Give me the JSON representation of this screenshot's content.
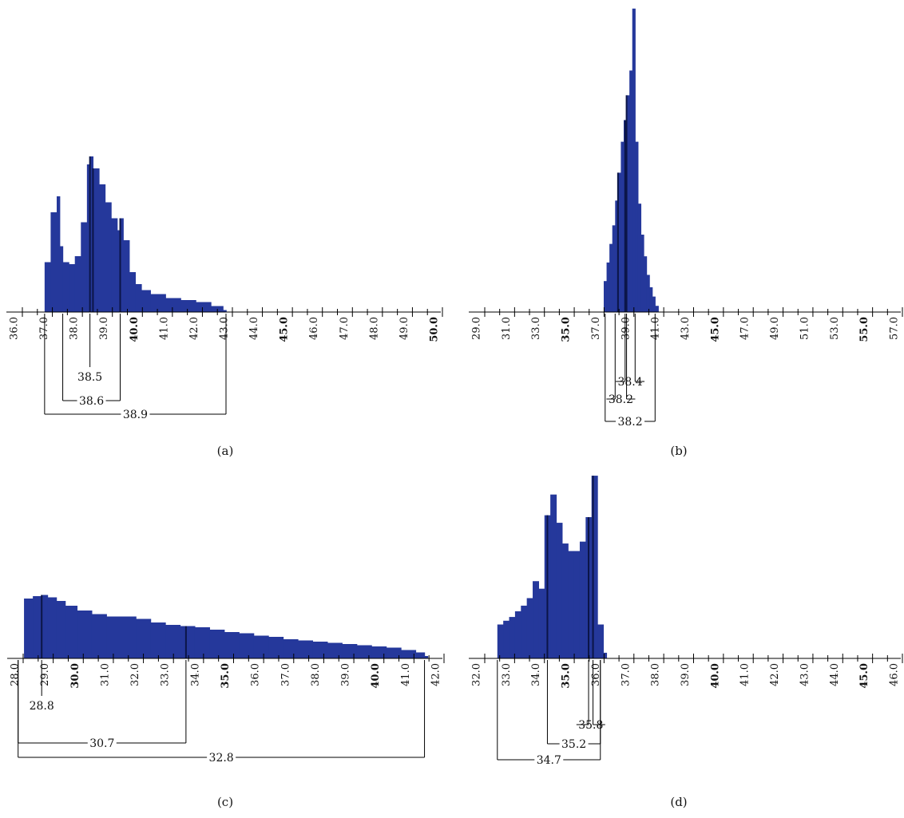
{
  "chart_data": [
    {
      "type": "bar",
      "panel_label": "(a)",
      "x_ticks": [
        "36.0",
        "37.0",
        "38.0",
        "39.0",
        "40.0",
        "41.0",
        "42.0",
        "43.0",
        "44.0",
        "45.0",
        "46.0",
        "47.0",
        "48.0",
        "49.0",
        "50.0"
      ],
      "bold_ticks": [
        "40.0",
        "45.0",
        "50.0"
      ],
      "xlim": [
        36.0,
        50.0
      ],
      "series": [
        {
          "x": [
            37.0,
            37.2,
            37.4,
            37.5,
            37.6,
            37.8,
            38.0,
            38.2,
            38.4,
            38.5,
            38.6,
            38.8,
            39.0,
            39.2,
            39.4,
            39.5,
            39.6,
            39.8,
            40.0,
            40.2,
            40.5,
            41.0,
            41.5,
            42.0,
            42.5,
            42.9
          ],
          "values": [
            0.25,
            0.5,
            0.58,
            0.33,
            0.25,
            0.24,
            0.28,
            0.45,
            0.74,
            0.78,
            0.72,
            0.64,
            0.55,
            0.47,
            0.41,
            0.47,
            0.36,
            0.2,
            0.14,
            0.11,
            0.09,
            0.07,
            0.06,
            0.05,
            0.03,
            0.01
          ]
        }
      ],
      "markers": [
        38.5,
        38.6,
        39.5
      ],
      "annotations": [
        {
          "label": "38.5",
          "from": 38.5,
          "to": 38.5
        },
        {
          "label": "38.6",
          "from": 37.6,
          "to": 39.5
        },
        {
          "label": "38.9",
          "from": 37.0,
          "to": 43.0
        }
      ]
    },
    {
      "type": "bar",
      "panel_label": "(b)",
      "x_ticks": [
        "29.0",
        "31.0",
        "33.0",
        "35.0",
        "37.0",
        "39.0",
        "41.0",
        "43.0",
        "45.0",
        "47.0",
        "49.0",
        "51.0",
        "53.0",
        "55.0",
        "57.0"
      ],
      "bold_ticks": [
        "35.0",
        "45.0",
        "55.0"
      ],
      "xlim": [
        28.0,
        57.5
      ],
      "series": [
        {
          "x": [
            36.9,
            37.1,
            37.3,
            37.5,
            37.7,
            37.9,
            38.1,
            38.3,
            38.5,
            38.7,
            38.9,
            39.1,
            39.3,
            39.5,
            39.7,
            39.9,
            40.1,
            40.3,
            40.5
          ],
          "values": [
            0.1,
            0.16,
            0.22,
            0.28,
            0.36,
            0.45,
            0.55,
            0.62,
            0.7,
            0.78,
            0.98,
            0.55,
            0.35,
            0.25,
            0.18,
            0.12,
            0.08,
            0.05,
            0.02
          ]
        }
      ],
      "markers": [
        37.9,
        38.4,
        38.5
      ],
      "annotations": [
        {
          "label": "38.4",
          "from": 38.4,
          "to": 39.1
        },
        {
          "label": "38.2",
          "from": 37.7,
          "to": 38.5
        },
        {
          "label": "38.2",
          "from": 37.0,
          "to": 40.5
        }
      ]
    },
    {
      "type": "bar",
      "panel_label": "(c)",
      "x_ticks": [
        "28.0",
        "29.0",
        "30.0",
        "31.0",
        "32.0",
        "33.0",
        "34.0",
        "35.0",
        "36.0",
        "37.0",
        "38.0",
        "39.0",
        "40.0",
        "41.0",
        "42.0"
      ],
      "bold_ticks": [
        "30.0",
        "35.0",
        "40.0"
      ],
      "xlim": [
        27.9,
        42.3
      ],
      "series": [
        {
          "x": [
            28.2,
            28.5,
            28.8,
            29.0,
            29.3,
            29.6,
            30.0,
            30.5,
            31.0,
            31.5,
            32.0,
            32.5,
            33.0,
            33.5,
            34.0,
            34.5,
            35.0,
            35.5,
            36.0,
            36.5,
            37.0,
            37.5,
            38.0,
            38.5,
            39.0,
            39.5,
            40.0,
            40.5,
            41.0,
            41.5,
            41.8
          ],
          "values": [
            0.5,
            0.52,
            0.53,
            0.51,
            0.48,
            0.44,
            0.4,
            0.37,
            0.35,
            0.35,
            0.33,
            0.3,
            0.28,
            0.27,
            0.26,
            0.24,
            0.22,
            0.21,
            0.19,
            0.18,
            0.16,
            0.15,
            0.14,
            0.13,
            0.12,
            0.11,
            0.1,
            0.09,
            0.07,
            0.05,
            0.02
          ]
        }
      ],
      "markers": [
        28.8,
        33.7
      ],
      "annotations": [
        {
          "label": "28.8",
          "from": 28.8,
          "to": 28.8
        },
        {
          "label": "30.7",
          "from": 28.0,
          "to": 33.7
        },
        {
          "label": "32.8",
          "from": 28.0,
          "to": 41.8
        }
      ]
    },
    {
      "type": "bar",
      "panel_label": "(d)",
      "x_ticks": [
        "32.0",
        "33.0",
        "34.0",
        "35.0",
        "36.0",
        "37.0",
        "38.0",
        "39.0",
        "40.0",
        "41.0",
        "42.0",
        "43.0",
        "44.0",
        "45.0",
        "46.0"
      ],
      "bold_ticks": [
        "35.0",
        "40.0",
        "45.0"
      ],
      "xlim": [
        32.0,
        46.3
      ],
      "series": [
        {
          "x": [
            32.7,
            32.9,
            33.1,
            33.3,
            33.5,
            33.7,
            33.9,
            34.1,
            34.3,
            34.5,
            34.7,
            34.9,
            35.1,
            35.3,
            35.5,
            35.7,
            35.9,
            36.1,
            36.3
          ],
          "values": [
            0.18,
            0.2,
            0.22,
            0.25,
            0.28,
            0.32,
            0.41,
            0.37,
            0.76,
            0.87,
            0.72,
            0.61,
            0.57,
            0.57,
            0.62,
            0.75,
            0.97,
            0.18,
            0.03
          ]
        }
      ],
      "markers": [
        34.4,
        35.8,
        35.95
      ],
      "annotations": [
        {
          "label": "35.8",
          "from": 35.8,
          "to": 35.95
        },
        {
          "label": "35.2",
          "from": 34.4,
          "to": 36.2
        },
        {
          "label": "34.7",
          "from": 32.7,
          "to": 36.2
        }
      ]
    }
  ],
  "style": {
    "bar_color": "#25389b",
    "marker_color": "#0b1547",
    "axis_color": "#000000"
  }
}
